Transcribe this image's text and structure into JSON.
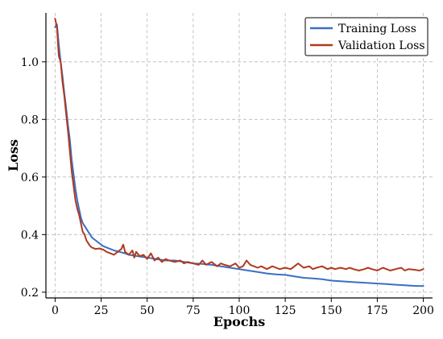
{
  "chart_data": {
    "type": "line",
    "title": "",
    "xlabel": "Epochs",
    "ylabel": "Loss",
    "xlim": [
      -5,
      205
    ],
    "ylim": [
      0.18,
      1.17
    ],
    "xticks": [
      0,
      25,
      50,
      75,
      100,
      125,
      150,
      175,
      200
    ],
    "yticks": [
      0.2,
      0.4,
      0.6,
      0.8,
      1.0
    ],
    "xtick_labels": [
      "0",
      "25",
      "50",
      "75",
      "100",
      "125",
      "150",
      "175",
      "200"
    ],
    "ytick_labels": [
      "0.2",
      "0.4",
      "0.6",
      "0.8",
      "1.0"
    ],
    "grid": true,
    "legend_position": "top-right",
    "series": [
      {
        "name": "Training Loss",
        "color": "#3a6fc4",
        "x": [
          0,
          1,
          2,
          3,
          4,
          5,
          6,
          7,
          8,
          9,
          10,
          11,
          12,
          13,
          14,
          15,
          16,
          17,
          18,
          19,
          20,
          22,
          24,
          26,
          28,
          30,
          32,
          35,
          38,
          40,
          45,
          50,
          55,
          60,
          65,
          70,
          75,
          80,
          85,
          90,
          95,
          100,
          105,
          110,
          115,
          120,
          125,
          130,
          135,
          140,
          145,
          150,
          155,
          160,
          165,
          170,
          175,
          180,
          185,
          190,
          195,
          200
        ],
        "values": [
          1.12,
          1.13,
          1.06,
          1.0,
          0.95,
          0.89,
          0.84,
          0.78,
          0.73,
          0.66,
          0.61,
          0.56,
          0.52,
          0.49,
          0.46,
          0.44,
          0.43,
          0.42,
          0.41,
          0.4,
          0.39,
          0.38,
          0.37,
          0.36,
          0.355,
          0.35,
          0.345,
          0.34,
          0.335,
          0.33,
          0.325,
          0.32,
          0.315,
          0.31,
          0.31,
          0.305,
          0.3,
          0.298,
          0.295,
          0.29,
          0.285,
          0.28,
          0.275,
          0.27,
          0.265,
          0.262,
          0.26,
          0.255,
          0.25,
          0.248,
          0.245,
          0.24,
          0.238,
          0.236,
          0.234,
          0.232,
          0.23,
          0.228,
          0.226,
          0.224,
          0.222,
          0.221
        ]
      },
      {
        "name": "Validation Loss",
        "color": "#b03a1e",
        "x": [
          0,
          1,
          2,
          3,
          4,
          5,
          6,
          7,
          8,
          9,
          10,
          11,
          12,
          13,
          14,
          15,
          16,
          17,
          18,
          19,
          20,
          22,
          24,
          26,
          28,
          30,
          32,
          34,
          36,
          37,
          38,
          40,
          42,
          43,
          44,
          46,
          48,
          50,
          52,
          54,
          56,
          58,
          60,
          62,
          65,
          68,
          70,
          72,
          75,
          78,
          80,
          82,
          85,
          88,
          90,
          92,
          95,
          98,
          100,
          102,
          104,
          106,
          108,
          110,
          112,
          115,
          118,
          120,
          122,
          125,
          128,
          130,
          132,
          135,
          138,
          140,
          142,
          145,
          148,
          150,
          152,
          155,
          158,
          160,
          162,
          165,
          168,
          170,
          172,
          175,
          178,
          180,
          182,
          185,
          188,
          190,
          192,
          195,
          198,
          200
        ],
        "values": [
          1.15,
          1.12,
          1.02,
          1.0,
          0.93,
          0.88,
          0.82,
          0.76,
          0.69,
          0.62,
          0.57,
          0.52,
          0.49,
          0.47,
          0.44,
          0.41,
          0.4,
          0.38,
          0.37,
          0.36,
          0.355,
          0.35,
          0.352,
          0.348,
          0.34,
          0.335,
          0.33,
          0.34,
          0.35,
          0.365,
          0.34,
          0.33,
          0.345,
          0.32,
          0.34,
          0.325,
          0.33,
          0.315,
          0.335,
          0.31,
          0.32,
          0.305,
          0.315,
          0.31,
          0.305,
          0.31,
          0.3,
          0.305,
          0.3,
          0.295,
          0.31,
          0.295,
          0.305,
          0.29,
          0.3,
          0.295,
          0.29,
          0.3,
          0.285,
          0.29,
          0.31,
          0.295,
          0.29,
          0.285,
          0.29,
          0.28,
          0.29,
          0.285,
          0.28,
          0.285,
          0.28,
          0.29,
          0.3,
          0.285,
          0.29,
          0.28,
          0.285,
          0.29,
          0.28,
          0.285,
          0.28,
          0.285,
          0.28,
          0.285,
          0.28,
          0.275,
          0.28,
          0.285,
          0.28,
          0.275,
          0.285,
          0.28,
          0.275,
          0.28,
          0.285,
          0.275,
          0.28,
          0.278,
          0.275,
          0.28
        ]
      }
    ]
  }
}
